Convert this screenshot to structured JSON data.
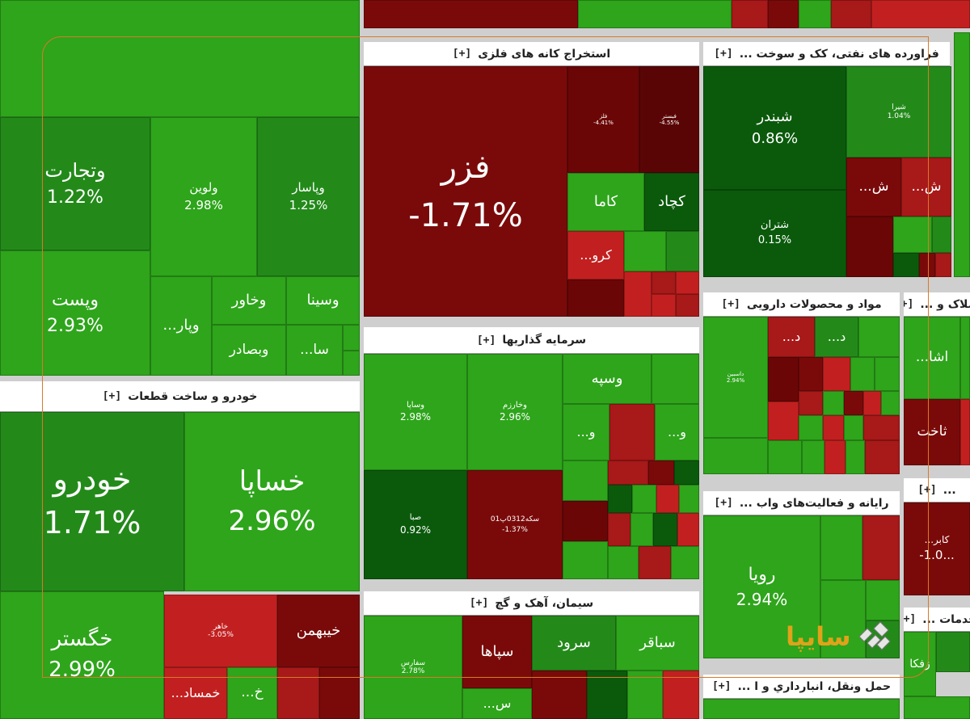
{
  "colors": {
    "bright_green": "#2ea51b",
    "mid_green": "#238a1a",
    "dark_green": "#0b5a0c",
    "dark_red": "#7a0a0a",
    "mid_red": "#a81919",
    "bright_red": "#c22020",
    "header_bg": "#ffffff",
    "frame": "#d97a2a",
    "logo": "#e0a21a"
  },
  "sectors": {
    "automotive": "خودرو و ساخت قطعات",
    "metal_mining": "استخراج کانه های فلزی",
    "oil_refining": "فراورده های نفتی، کک و سوخت ...",
    "investment": "سرمایه گذاریها",
    "pharma": "مواد و محصولات دارویی",
    "computer": "رایانه و فعالیت‌های واب ...",
    "cement": "سیمان، آهک و گچ",
    "transport": "حمل ونقل، انبارداري و ا ...",
    "realestate": "املاک و ...",
    "services": "خدمات ...",
    "other_right": "...",
    "plus": "[+]"
  },
  "stocks": {
    "vtejarat": {
      "name": "وتجارت",
      "pct": "1.22%"
    },
    "vlavin": {
      "name": "ولوین",
      "pct": "2.98%"
    },
    "vpasar": {
      "name": "وپاسار",
      "pct": "1.25%"
    },
    "vpost": {
      "name": "وپست",
      "pct": "2.93%"
    },
    "vkhavar": {
      "name": "وخاور",
      "pct": ""
    },
    "vsina": {
      "name": "وسینا",
      "pct": ""
    },
    "vpar": {
      "name": "...وپار",
      "pct": ""
    },
    "vbsader": {
      "name": "وبصادر",
      "pct": ""
    },
    "sa": {
      "name": "...سا",
      "pct": ""
    },
    "fazar": {
      "name": "فزر",
      "pct": "-1.71%"
    },
    "small1": {
      "name": "فلز",
      "pct": "-4.41%"
    },
    "small2": {
      "name": "فبستر",
      "pct": "-4.55%"
    },
    "kama": {
      "name": "کاما",
      "pct": ""
    },
    "kchad": {
      "name": "کچاد",
      "pct": ""
    },
    "kro": {
      "name": "...کرو",
      "pct": ""
    },
    "shbandar": {
      "name": "شبندر",
      "pct": "0.86%"
    },
    "shiran": {
      "name": "شیرا",
      "pct": "1.04%"
    },
    "shran": {
      "name": "شتران",
      "pct": "0.15%"
    },
    "sh1": {
      "name": "...ش",
      "pct": ""
    },
    "sh2": {
      "name": "...ش",
      "pct": ""
    },
    "khodro": {
      "name": "خودرو",
      "pct": "1.71%"
    },
    "khsapa": {
      "name": "خساپا",
      "pct": "2.96%"
    },
    "khgostar": {
      "name": "خگستر",
      "pct": "2.99%"
    },
    "khmehr": {
      "name": "خاهر",
      "pct": "-3.05%"
    },
    "khibahman": {
      "name": "خیبهمن",
      "pct": ""
    },
    "kh": {
      "name": "...خ",
      "pct": ""
    },
    "khamsad": {
      "name": "...خمساد",
      "pct": ""
    },
    "vsapa": {
      "name": "وساپا",
      "pct": "2.98%"
    },
    "vkharazm": {
      "name": "وخارزم",
      "pct": "2.96%"
    },
    "vsepeh": {
      "name": "وسپه",
      "pct": ""
    },
    "vo1": {
      "name": "...و",
      "pct": ""
    },
    "vo2": {
      "name": "...و",
      "pct": ""
    },
    "sba": {
      "name": "صبا",
      "pct": "0.92%"
    },
    "seke": {
      "name": "سکه0312پ01",
      "pct": "-1.37%"
    },
    "dasbin": {
      "name": "داسبین",
      "pct": "2.94%"
    },
    "d1": {
      "name": "...د",
      "pct": ""
    },
    "d2": {
      "name": "...د",
      "pct": ""
    },
    "rouya": {
      "name": "رویا",
      "pct": "2.94%"
    },
    "sfarsi": {
      "name": "سفارس",
      "pct": "2.78%"
    },
    "sepaha": {
      "name": "سپاها",
      "pct": ""
    },
    "sorood": {
      "name": "سرود",
      "pct": ""
    },
    "sbagher": {
      "name": "سباقر",
      "pct": ""
    },
    "s1": {
      "name": "...س",
      "pct": ""
    },
    "ashna": {
      "name": "...اشا",
      "pct": ""
    },
    "tachit": {
      "name": "ثاخت",
      "pct": ""
    },
    "kaber": {
      "name": "...کابر",
      "pct": "-1.0..."
    },
    "zfka": {
      "name": "زفکا",
      "pct": ""
    }
  },
  "logo": {
    "text": "سایپا"
  }
}
